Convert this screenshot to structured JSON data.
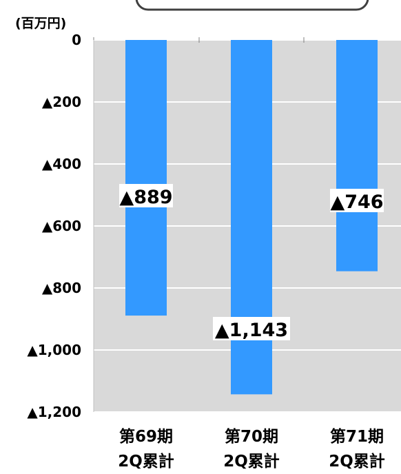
{
  "chart_data": {
    "type": "bar",
    "unit_label": "(百万円)",
    "categories": [
      [
        "第69期",
        "2Q累計"
      ],
      [
        "第70期",
        "2Q累計"
      ],
      [
        "第71期",
        "2Q累計"
      ]
    ],
    "values": [
      -889,
      -1143,
      -746
    ],
    "data_labels": [
      "▲889",
      "▲1,143",
      "▲746"
    ],
    "y_ticks": [
      {
        "value": 0,
        "label": "0"
      },
      {
        "value": -200,
        "label": "▲200"
      },
      {
        "value": -400,
        "label": "▲400"
      },
      {
        "value": -600,
        "label": "▲600"
      },
      {
        "value": -800,
        "label": "▲800"
      },
      {
        "value": -1000,
        "label": "▲1,000"
      },
      {
        "value": -1200,
        "label": "▲1,200"
      }
    ],
    "ylim": [
      -1200,
      0
    ],
    "grid": true,
    "colors": {
      "bar": "#3399ff",
      "plot_background": "#d9d9d9",
      "grid": "#ffffff",
      "label_background": "#ffffff"
    }
  }
}
